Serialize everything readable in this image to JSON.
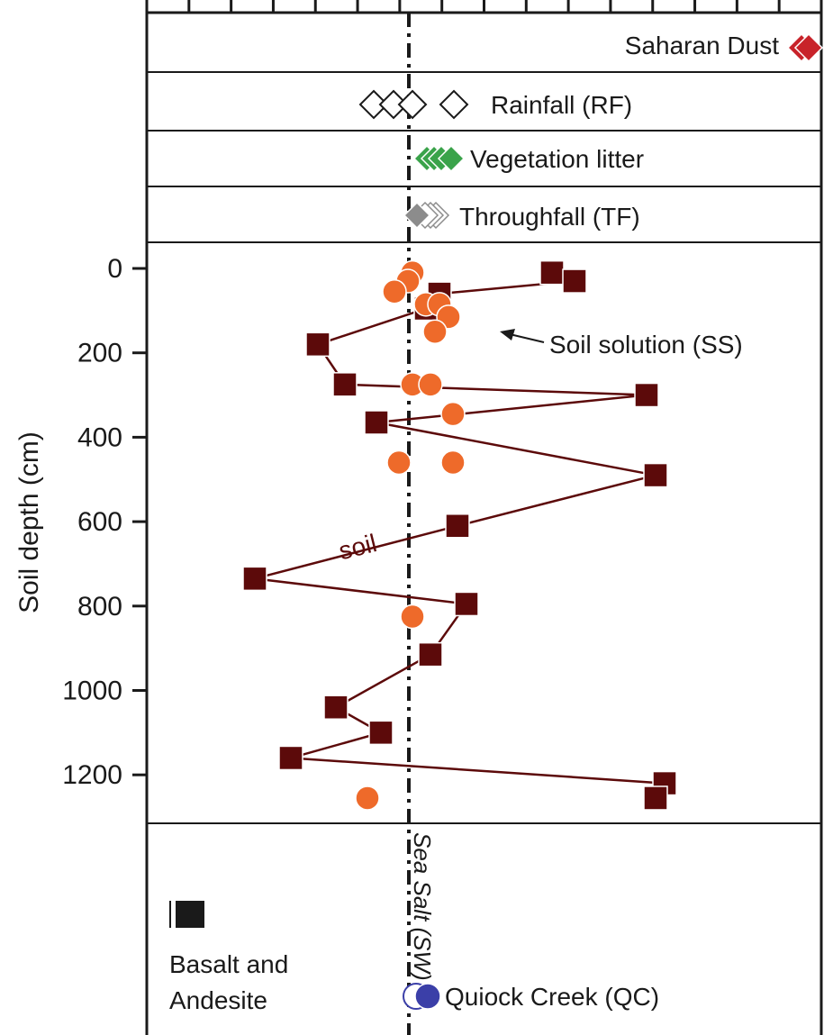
{
  "chart_data": {
    "type": "scatter",
    "ylabel": "Soil depth (cm)",
    "ylim": [
      0,
      1200
    ],
    "yticks": [
      "0",
      "200",
      "400",
      "600",
      "800",
      "1000",
      "1200"
    ],
    "panels": [
      {
        "label": "Saharan Dust",
        "color": "#c8232a",
        "marker": "diamond"
      },
      {
        "label": "Rainfall (RF)",
        "color": "#ffffff",
        "marker": "diamond-open"
      },
      {
        "label": "Vegetation litter",
        "color": "#3aa34a",
        "marker": "diamond"
      },
      {
        "label": "Throughfall (TF)",
        "color": "#8c8c8c",
        "marker": "diamond"
      }
    ],
    "series": [
      {
        "label": "soil",
        "color": "#5c0a0a",
        "marker": "square",
        "points": [
          {
            "x": 4.5,
            "y": 10
          },
          {
            "x": 4.75,
            "y": 30
          },
          {
            "x": 3.25,
            "y": 60
          },
          {
            "x": 3.1,
            "y": 95
          },
          {
            "x": 1.9,
            "y": 180
          },
          {
            "x": 2.2,
            "y": 275
          },
          {
            "x": 5.55,
            "y": 300
          },
          {
            "x": 2.55,
            "y": 365
          },
          {
            "x": 5.65,
            "y": 490
          },
          {
            "x": 3.45,
            "y": 610
          },
          {
            "x": 1.2,
            "y": 735
          },
          {
            "x": 3.55,
            "y": 795
          },
          {
            "x": 3.15,
            "y": 915
          },
          {
            "x": 2.1,
            "y": 1040
          },
          {
            "x": 2.6,
            "y": 1100
          },
          {
            "x": 1.6,
            "y": 1160
          },
          {
            "x": 5.75,
            "y": 1220
          },
          {
            "x": 5.65,
            "y": 1255
          }
        ]
      },
      {
        "label": "Soil solution (SS)",
        "color": "#ee6a2a",
        "marker": "circle",
        "points": [
          {
            "x": 2.95,
            "y": 10
          },
          {
            "x": 2.9,
            "y": 30
          },
          {
            "x": 2.75,
            "y": 55
          },
          {
            "x": 3.1,
            "y": 85
          },
          {
            "x": 3.25,
            "y": 85
          },
          {
            "x": 3.35,
            "y": 115
          },
          {
            "x": 3.2,
            "y": 150
          },
          {
            "x": 2.95,
            "y": 275
          },
          {
            "x": 3.15,
            "y": 275
          },
          {
            "x": 3.4,
            "y": 345
          },
          {
            "x": 2.8,
            "y": 460
          },
          {
            "x": 3.4,
            "y": 460
          },
          {
            "x": 2.95,
            "y": 825
          },
          {
            "x": 2.45,
            "y": 1255
          }
        ]
      }
    ],
    "annotations": {
      "sea_salt": "Sea Salt (SW)",
      "soil_solution": "Soil solution (SS)",
      "soil": "soil",
      "basalt": [
        "Basalt and",
        "Andesite"
      ],
      "quiock": "Quiock Creek (QC)"
    }
  }
}
